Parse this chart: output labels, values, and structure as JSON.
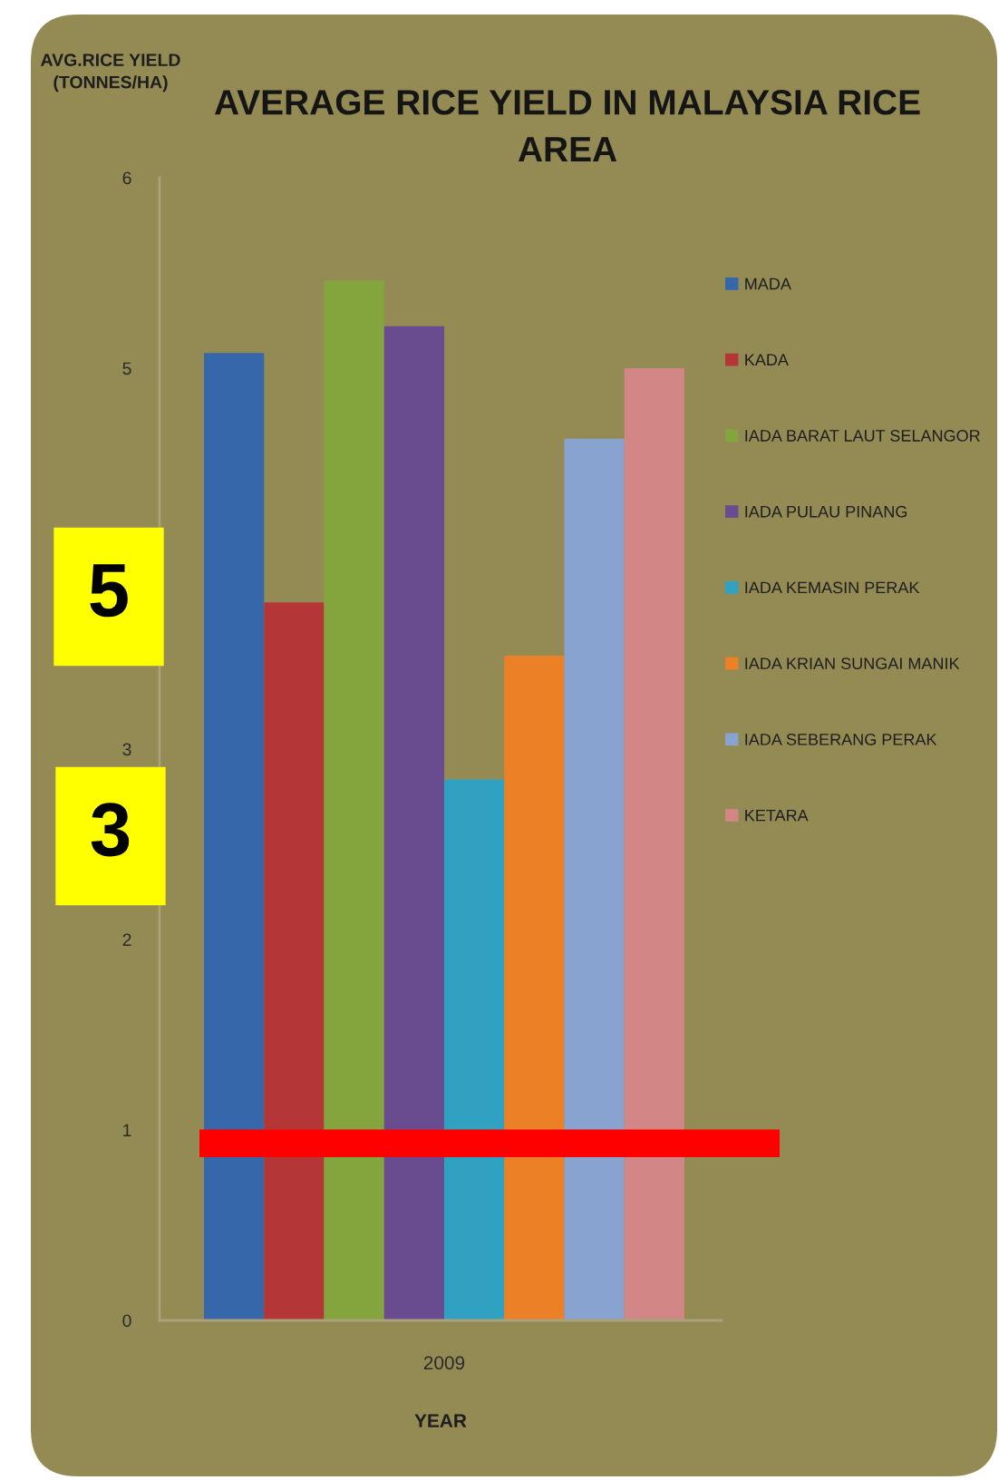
{
  "chart_data": {
    "type": "bar",
    "title": "AVERAGE RICE YIELD IN MALAYSIA RICE AREA",
    "ylabel": "AVG.RICE YIELD (TONNES/HA)",
    "xlabel": "YEAR",
    "categories": [
      "2009"
    ],
    "series": [
      {
        "name": "MADA",
        "color": "#3667ab",
        "values": [
          5.08
        ]
      },
      {
        "name": "KADA",
        "color": "#b43636",
        "values": [
          3.77
        ]
      },
      {
        "name": "IADA BARAT LAUT SELANGOR",
        "color": "#84a53e",
        "values": [
          5.46
        ]
      },
      {
        "name": "IADA PULAU PINANG",
        "color": "#694b90",
        "values": [
          5.22
        ]
      },
      {
        "name": "IADA KEMASIN PERAK",
        "color": "#30a1c1",
        "values": [
          2.84
        ]
      },
      {
        "name": "IADA KRIAN SUNGAI MANIK",
        "color": "#ec8026",
        "values": [
          3.49
        ]
      },
      {
        "name": "IADA SEBERANG PERAK",
        "color": "#88a3d0",
        "values": [
          4.63
        ]
      },
      {
        "name": "KETARA",
        "color": "#d38686",
        "values": [
          5.0
        ]
      }
    ],
    "ylim": [
      0,
      6
    ],
    "yticks": [
      0,
      1,
      2,
      3,
      5,
      6
    ],
    "legend": "right",
    "grid": false,
    "ref_lines": [
      {
        "axis": "y",
        "value": 0.93,
        "color": "#ff0000"
      }
    ],
    "annotations": [
      "5",
      "3"
    ]
  }
}
